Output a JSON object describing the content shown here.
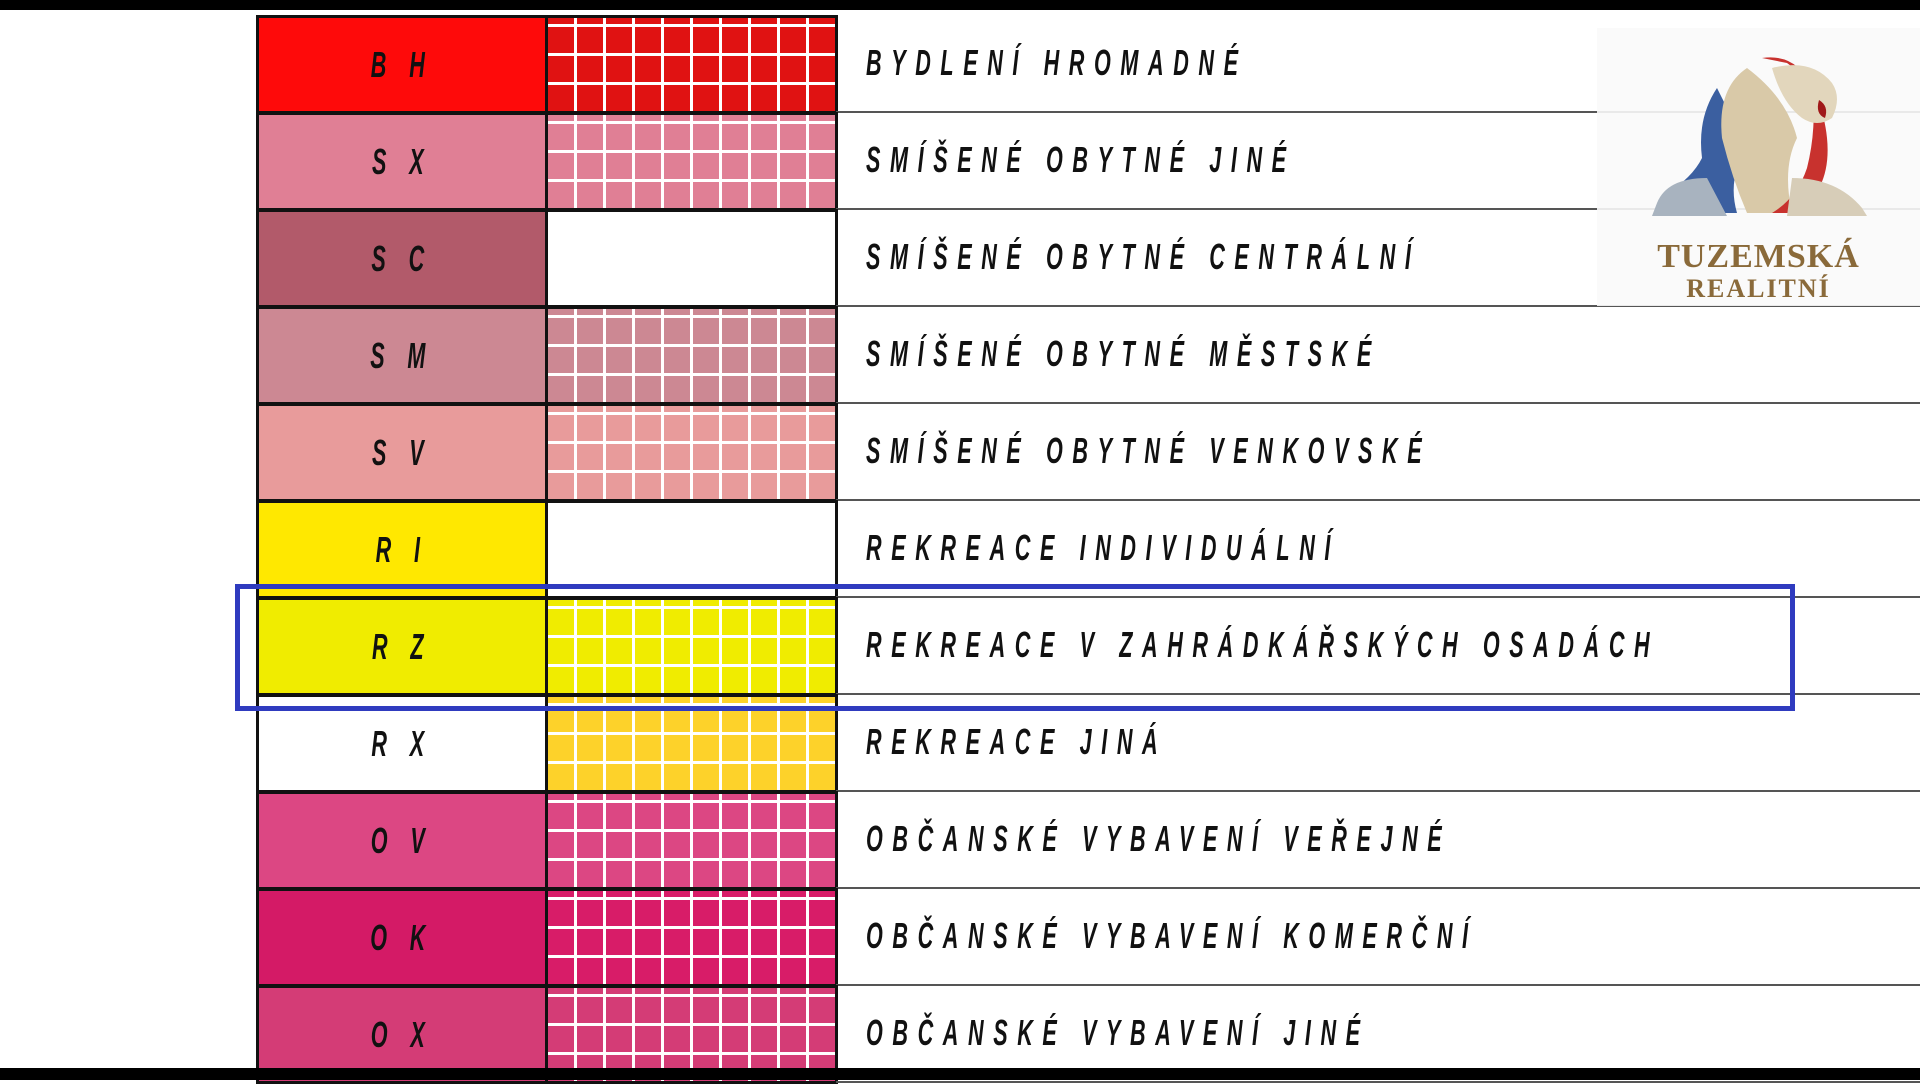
{
  "legend": {
    "rows": [
      {
        "code": "B H",
        "label": "BYDLENÍ HROMADNÉ",
        "color": "#fe0a0a",
        "pattern_color": "#e01212",
        "hatched": true
      },
      {
        "code": "S X",
        "label": "SMÍŠENÉ OBYTNÉ JINÉ",
        "color": "#e07f95",
        "pattern_color": "#e07f95",
        "hatched": true
      },
      {
        "code": "S C",
        "label": "SMÍŠENÉ OBYTNÉ CENTRÁLNÍ",
        "color": "#b25a6a",
        "pattern_color": "#ffffff",
        "hatched": false
      },
      {
        "code": "S M",
        "label": "SMÍŠENÉ OBYTNÉ MĚSTSKÉ",
        "color": "#cc8893",
        "pattern_color": "#cc8893",
        "hatched": true
      },
      {
        "code": "S V",
        "label": "SMÍŠENÉ OBYTNÉ VENKOVSKÉ",
        "color": "#e89b9b",
        "pattern_color": "#e89b9b",
        "hatched": true
      },
      {
        "code": "R I",
        "label": "REKREACE INDIVIDUÁLNÍ",
        "color": "#ffe800",
        "pattern_color": "#ffffff",
        "hatched": false
      },
      {
        "code": "R Z",
        "label": "REKREACE V ZAHRÁDKÁŘSKÝCH OSADÁCH",
        "color": "#f0ec00",
        "pattern_color": "#f0ec00",
        "hatched": true
      },
      {
        "code": "R X",
        "label": "REKREACE JINÁ",
        "color": "#ffffff",
        "pattern_color": "#fdd22a",
        "hatched": true
      },
      {
        "code": "O V",
        "label": "OBČANSKÉ VYBAVENÍ VEŘEJNÉ",
        "color": "#dc4783",
        "pattern_color": "#dc4783",
        "hatched": true
      },
      {
        "code": "O K",
        "label": "OBČANSKÉ  VYBAVENÍ KOMERČNÍ",
        "color": "#d41a66",
        "pattern_color": "#d81c68",
        "hatched": true
      },
      {
        "code": "O X",
        "label": "OBČANSKÉ  VYBAVENÍ JINÉ",
        "color": "#d43c76",
        "pattern_color": "#d43c76",
        "hatched": true
      }
    ],
    "highlighted_row": "R Z",
    "highlight_color": "#2f3bbf"
  },
  "logo": {
    "line1": "TUZEMSKÁ",
    "line2": "REALITNÍ"
  }
}
